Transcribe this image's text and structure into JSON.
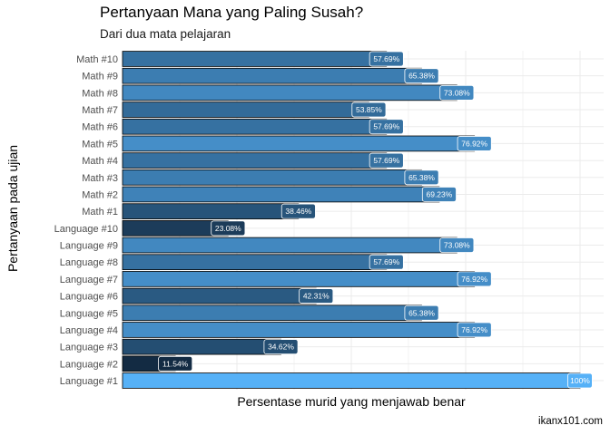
{
  "chart_data": {
    "type": "bar",
    "orientation": "horizontal",
    "title": "Pertanyaan Mana yang Paling Susah?",
    "subtitle": "Dari dua mata pelajaran",
    "xlabel": "Persentase murid yang menjawab benar",
    "ylabel": "Pertanyaan pada ujian",
    "caption": "ikanx101.com",
    "xlim": [
      0,
      100
    ],
    "grid": true,
    "legend": "none",
    "categories": [
      "Math #10",
      "Math #9",
      "Math #8",
      "Math #7",
      "Math #6",
      "Math #5",
      "Math #4",
      "Math #3",
      "Math #2",
      "Math #1",
      "Language #10",
      "Language #9",
      "Language #8",
      "Language #7",
      "Language #6",
      "Language #5",
      "Language #4",
      "Language #3",
      "Language #2",
      "Language #1"
    ],
    "values": [
      57.69,
      65.38,
      73.08,
      53.85,
      57.69,
      76.92,
      57.69,
      65.38,
      69.23,
      38.46,
      23.08,
      73.08,
      57.69,
      76.92,
      42.31,
      65.38,
      76.92,
      34.62,
      11.54,
      100
    ],
    "data_labels": [
      "57.69%",
      "65.38%",
      "73.08%",
      "53.85%",
      "57.69%",
      "76.92%",
      "57.69%",
      "65.38%",
      "69.23%",
      "38.46%",
      "23.08%",
      "73.08%",
      "57.69%",
      "76.92%",
      "42.31%",
      "65.38%",
      "76.92%",
      "34.62%",
      "11.54%",
      "100%"
    ],
    "color_low": "#132B43",
    "color_high": "#56B1F7"
  }
}
